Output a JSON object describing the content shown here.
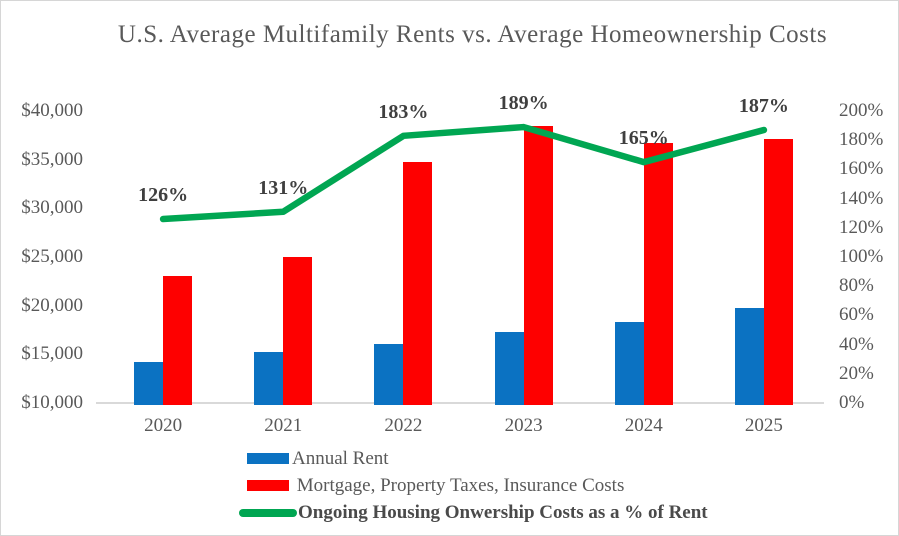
{
  "title": "U.S. Average Multifamily Rents vs. Average Homeownership Costs",
  "colors": {
    "rent_bar": "#0b72c2",
    "ownership_bar": "#fe0000",
    "line": "#00a652",
    "title_text": "#595959",
    "axis_text": "#595959",
    "data_label_text": "#3f3f3f",
    "axis_line": "#d9d9d9"
  },
  "chart_data": {
    "type": "bar+line",
    "title": "U.S. Average Multifamily Rents vs. Average Homeownership Costs",
    "categories": [
      "2020",
      "2021",
      "2022",
      "2023",
      "2024",
      "2025"
    ],
    "series": [
      {
        "name": "Annual Rent",
        "type": "bar",
        "axis": "left",
        "color": "#0b72c2",
        "values": [
          14200,
          15200,
          16100,
          17300,
          18300,
          19800
        ]
      },
      {
        "name": " Mortgage, Property Taxes, Insurance Costs",
        "type": "bar",
        "axis": "left",
        "color": "#fe0000",
        "values": [
          23000,
          25000,
          34800,
          38500,
          36700,
          37100
        ]
      },
      {
        "name": "Ongoing Housing Onwership Costs as a % of Rent",
        "type": "line",
        "axis": "right",
        "color": "#00a652",
        "values": [
          126,
          131,
          183,
          189,
          165,
          187
        ],
        "data_labels": [
          "126%",
          "131%",
          "183%",
          "189%",
          "165%",
          "187%"
        ]
      }
    ],
    "left_axis": {
      "min": 10000,
      "max": 40000,
      "step": 5000,
      "ticks": [
        "$10,000",
        "$15,000",
        "$20,000",
        "$25,000",
        "$30,000",
        "$35,000",
        "$40,000"
      ]
    },
    "right_axis": {
      "min": 0,
      "max": 200,
      "step": 20,
      "ticks": [
        "0%",
        "20%",
        "40%",
        "60%",
        "80%",
        "100%",
        "120%",
        "140%",
        "160%",
        "180%",
        "200%"
      ]
    },
    "grid": "off",
    "legend_position": "bottom-left"
  }
}
